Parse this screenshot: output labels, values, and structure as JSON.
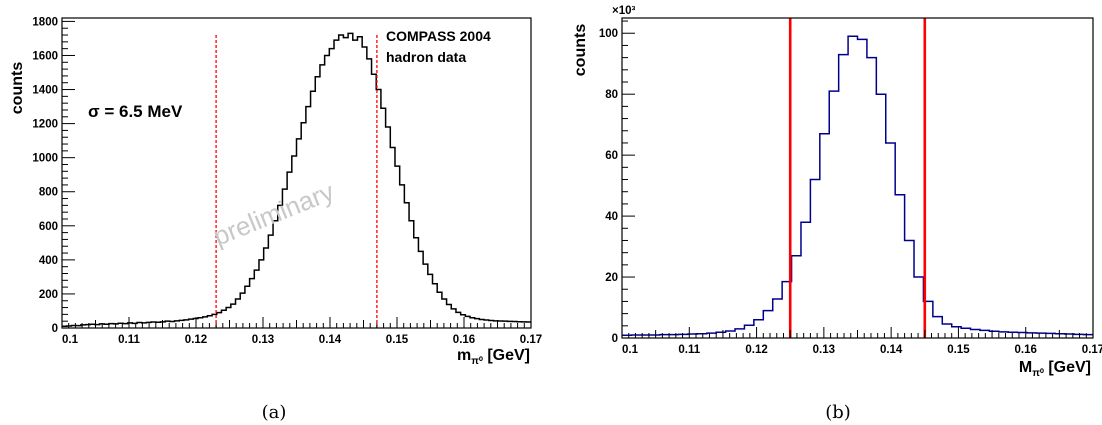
{
  "chart_data": [
    {
      "type": "histogram",
      "panel_label": "(a)",
      "xlabel": "m",
      "xlabel_sub": "π⁰",
      "xlabel_unit": "[GeV]",
      "ylabel": "counts",
      "xlim": [
        0.1,
        0.17
      ],
      "ylim": [
        0,
        1820
      ],
      "xticks": [
        "0.1",
        "0.11",
        "0.12",
        "0.13",
        "0.14",
        "0.15",
        "0.16",
        "0.17"
      ],
      "yticks": [
        "0",
        "200",
        "400",
        "600",
        "800",
        "1000",
        "1200",
        "1400",
        "1600",
        "1800"
      ],
      "annotations": {
        "sigma_label": "σ = 6.5 MeV",
        "experiment": "COMPASS 2004",
        "dataset": "hadron data",
        "watermark": "preliminary"
      },
      "cut_lines": [
        0.123,
        0.147
      ],
      "line_color": "#000000",
      "cut_color": "#ff0000",
      "bin_edges_range": [
        0.1,
        0.17
      ],
      "bin_width": 0.0007,
      "counts": [
        10,
        12,
        15,
        14,
        18,
        20,
        22,
        20,
        24,
        22,
        26,
        24,
        28,
        26,
        30,
        27,
        32,
        30,
        33,
        35,
        34,
        36,
        40,
        38,
        42,
        45,
        48,
        52,
        56,
        60,
        65,
        72,
        80,
        90,
        104,
        120,
        140,
        170,
        205,
        245,
        290,
        340,
        400,
        470,
        545,
        630,
        720,
        815,
        915,
        1010,
        1110,
        1205,
        1300,
        1390,
        1475,
        1545,
        1600,
        1640,
        1690,
        1720,
        1705,
        1730,
        1690,
        1710,
        1650,
        1580,
        1490,
        1400,
        1290,
        1180,
        1060,
        950,
        840,
        735,
        630,
        530,
        450,
        375,
        315,
        260,
        210,
        170,
        138,
        112,
        92,
        78,
        68,
        60,
        55,
        50,
        47,
        44,
        42,
        41,
        40,
        39,
        38,
        37,
        36,
        35
      ]
    },
    {
      "type": "histogram",
      "panel_label": "(b)",
      "xlabel": "M",
      "xlabel_sub": "π⁰",
      "xlabel_unit": "[GeV]",
      "ylabel": "counts",
      "y_multiplier": "×10³",
      "xlim": [
        0.1,
        0.17
      ],
      "ylim": [
        0,
        105
      ],
      "xticks": [
        "0.1",
        "0.11",
        "0.12",
        "0.13",
        "0.14",
        "0.15",
        "0.16",
        "0.17"
      ],
      "yticks": [
        "0",
        "20",
        "40",
        "60",
        "80",
        "100"
      ],
      "cut_lines": [
        0.125,
        0.145
      ],
      "line_color": "#00008b",
      "cut_color": "#ff0000",
      "bin_edges_range": [
        0.1,
        0.17
      ],
      "bin_width": 0.0014,
      "counts": [
        0.9,
        1.0,
        1.0,
        1.0,
        1.1,
        1.1,
        1.2,
        1.3,
        1.4,
        1.6,
        1.9,
        2.3,
        3.0,
        4.2,
        6.0,
        9.0,
        12.8,
        18.5,
        27.0,
        38.0,
        52.0,
        67.0,
        81.0,
        93.0,
        99.0,
        98.0,
        92.0,
        80.0,
        64.0,
        47.0,
        32.0,
        20.0,
        12.0,
        7.0,
        4.6,
        3.7,
        3.2,
        2.8,
        2.5,
        2.2,
        2.0,
        1.9,
        1.8,
        1.7,
        1.6,
        1.5,
        1.4,
        1.3,
        1.2,
        1.1
      ]
    }
  ]
}
